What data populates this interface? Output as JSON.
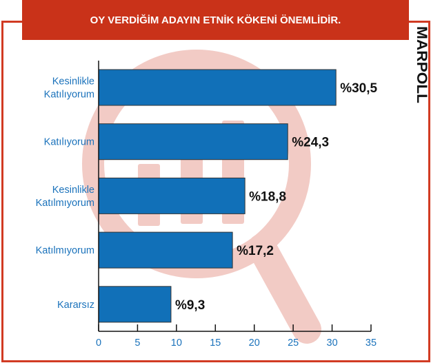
{
  "chart_data": {
    "type": "bar",
    "orientation": "horizontal",
    "title": "OY VERDİĞİM ADAYIN ETNİK KÖKENİ ÖNEMLİDİR.",
    "categories": [
      [
        "Kesinlikle",
        "Katılıyorum"
      ],
      [
        "Katılıyorum"
      ],
      [
        "Kesinlikle",
        "Katılmıyorum"
      ],
      [
        "Katılmıyorum"
      ],
      [
        "Kararsız"
      ]
    ],
    "values": [
      30.5,
      24.3,
      18.8,
      17.2,
      9.3
    ],
    "data_labels": [
      "%30,5",
      "%24,3",
      "%18,8",
      "%17,2",
      "%9,3"
    ],
    "xlim": [
      0,
      35
    ],
    "xticks": [
      0,
      5,
      10,
      15,
      20,
      25,
      30,
      35
    ],
    "grid": false,
    "colors": {
      "bar": "#1170b8",
      "label": "#1a72bb",
      "banner": "#c93219",
      "frame": "#d13a22",
      "watermark": "#f2cbc5"
    }
  },
  "logo": {
    "text": "MARPOLL"
  }
}
